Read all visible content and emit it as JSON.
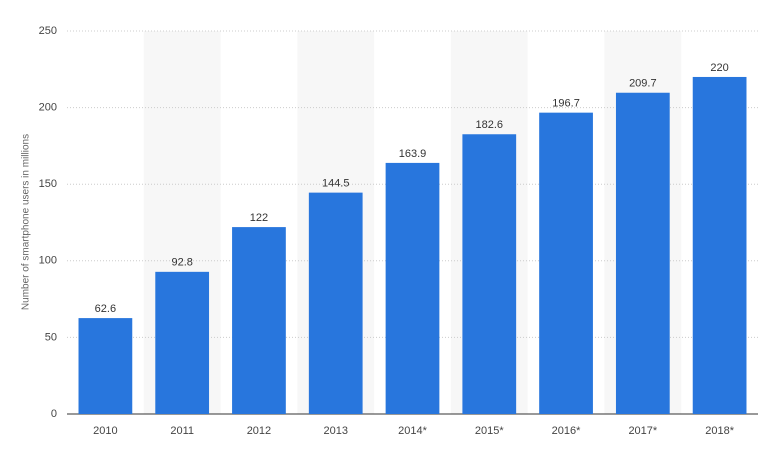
{
  "chart_data": {
    "type": "bar",
    "y_label": "Number of smartphone users in millions",
    "categories": [
      "2010",
      "2011",
      "2012",
      "2013",
      "2014*",
      "2015*",
      "2016*",
      "2017*",
      "2018*"
    ],
    "values": [
      62.6,
      92.8,
      122,
      144.5,
      163.9,
      182.6,
      196.7,
      209.7,
      220
    ],
    "color": "#2876dd",
    "ylim": [
      0,
      250
    ],
    "yticks": [
      0,
      50,
      100,
      150,
      200,
      250
    ],
    "grid": true
  }
}
